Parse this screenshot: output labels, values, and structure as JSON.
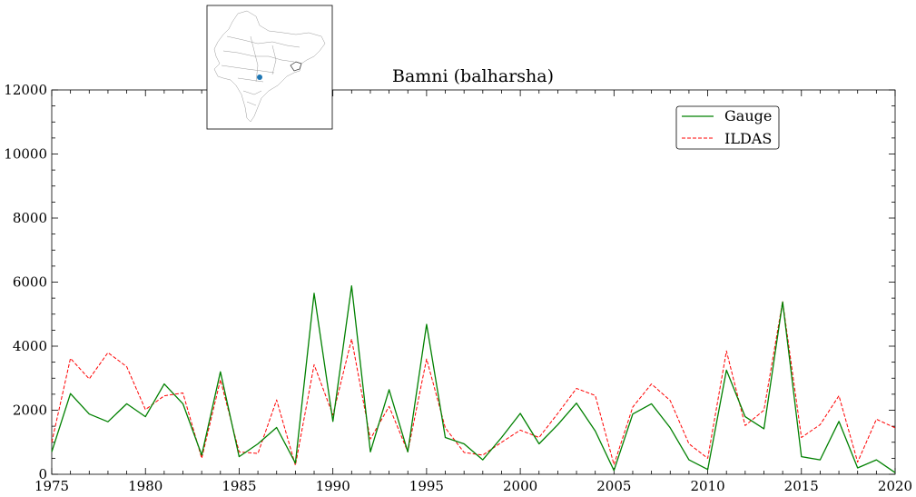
{
  "chart_data": {
    "type": "line",
    "title": "Bamni (balharsha)",
    "xlabel": "",
    "ylabel": "",
    "xlim": [
      1975,
      2020
    ],
    "ylim": [
      0,
      12000
    ],
    "x_ticks": [
      1975,
      1980,
      1985,
      1990,
      1995,
      2000,
      2005,
      2010,
      2015,
      2020
    ],
    "y_ticks": [
      0,
      2000,
      4000,
      6000,
      8000,
      10000,
      12000
    ],
    "grid": false,
    "legend": "top-right",
    "x": [
      1975,
      1976,
      1977,
      1978,
      1979,
      1980,
      1981,
      1982,
      1983,
      1984,
      1985,
      1986,
      1987,
      1988,
      1989,
      1990,
      1991,
      1992,
      1993,
      1994,
      1995,
      1996,
      1997,
      1998,
      1999,
      2000,
      2001,
      2002,
      2003,
      2004,
      2005,
      2006,
      2007,
      2008,
      2009,
      2010,
      2011,
      2012,
      2013,
      2014,
      2015,
      2016,
      2017,
      2018,
      2019,
      2020
    ],
    "series": [
      {
        "name": "Gauge",
        "color": "#008000",
        "style": "solid",
        "values": [
          700,
          2520,
          1880,
          1640,
          2200,
          1800,
          2820,
          2200,
          600,
          3200,
          550,
          950,
          1460,
          350,
          5650,
          1650,
          5880,
          700,
          2640,
          700,
          4680,
          1150,
          950,
          450,
          1150,
          1900,
          950,
          1550,
          2220,
          1350,
          120,
          1880,
          2200,
          1450,
          450,
          150,
          3250,
          1800,
          1420,
          5380,
          550,
          450,
          1650,
          200,
          450,
          50
        ]
      },
      {
        "name": "ILDAS",
        "color": "#ff0000",
        "style": "dashed",
        "values": [
          1000,
          3620,
          2980,
          3800,
          3360,
          2020,
          2450,
          2540,
          500,
          2950,
          700,
          650,
          2320,
          280,
          3420,
          1850,
          4220,
          1100,
          2120,
          700,
          3600,
          1450,
          680,
          600,
          1000,
          1380,
          1150,
          1900,
          2680,
          2460,
          300,
          2100,
          2820,
          2300,
          950,
          500,
          3850,
          1520,
          2000,
          5400,
          1150,
          1550,
          2450,
          380,
          1720,
          1450
        ]
      }
    ]
  },
  "inset_map": {
    "marker_color": "#1f77b4"
  }
}
